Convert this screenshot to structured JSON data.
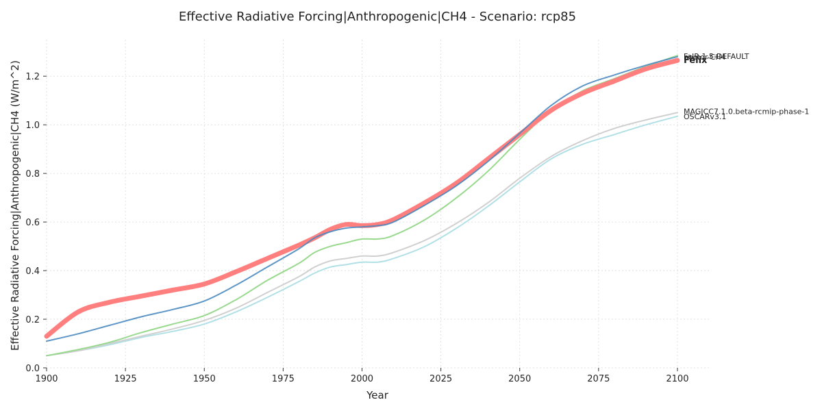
{
  "chart_data": {
    "type": "line",
    "title": "Effective Radiative Forcing|Anthropogenic|CH4 - Scenario: rcp85",
    "xlabel": "Year",
    "ylabel": "Effective Radiative Forcing|Anthropogenic|CH4 (W/m^2)",
    "xlim": [
      1900,
      2110
    ],
    "ylim": [
      0,
      1.35
    ],
    "xticks": [
      1900,
      1925,
      1950,
      1975,
      2000,
      2025,
      2050,
      2075,
      2100
    ],
    "yticks": [
      0.0,
      0.2,
      0.4,
      0.6,
      0.8,
      1.0,
      1.2
    ],
    "grid": true,
    "legend": "labels at line ends (right)",
    "x": [
      1900,
      1910,
      1920,
      1930,
      1940,
      1950,
      1960,
      1970,
      1980,
      1985,
      1990,
      1995,
      2000,
      2005,
      2010,
      2020,
      2030,
      2040,
      2050,
      2060,
      2070,
      2080,
      2090,
      2100
    ],
    "series": [
      {
        "name": "Felix",
        "color": "#ff7f7f",
        "width": 7,
        "bold_label": true,
        "values": [
          0.13,
          0.23,
          0.27,
          0.295,
          0.32,
          0.345,
          0.395,
          0.45,
          0.505,
          0.535,
          0.57,
          0.59,
          0.585,
          0.59,
          0.61,
          0.68,
          0.76,
          0.86,
          0.96,
          1.06,
          1.13,
          1.18,
          1.23,
          1.265
        ]
      },
      {
        "name": "FaIR-1.5-DEFAULT",
        "color": "#4a8ac0",
        "width": 2,
        "values": [
          0.11,
          0.14,
          0.175,
          0.21,
          0.24,
          0.275,
          0.34,
          0.415,
          0.49,
          0.535,
          0.56,
          0.575,
          0.58,
          0.585,
          0.6,
          0.67,
          0.75,
          0.85,
          0.965,
          1.08,
          1.16,
          1.205,
          1.245,
          1.28
        ]
      },
      {
        "name": "hector-CH4",
        "color": "#98d98e",
        "width": 2,
        "values": [
          0.05,
          0.075,
          0.105,
          0.145,
          0.18,
          0.215,
          0.28,
          0.36,
          0.43,
          0.475,
          0.5,
          0.515,
          0.53,
          0.53,
          0.545,
          0.61,
          0.7,
          0.81,
          0.94,
          1.06,
          1.14,
          1.19,
          1.24,
          1.285
        ]
      },
      {
        "name": "MAGICC7.1.0.beta-rcmip-phase-1",
        "color": "#d0d0d0",
        "width": 2,
        "values": [
          0.05,
          0.07,
          0.1,
          0.13,
          0.16,
          0.195,
          0.245,
          0.31,
          0.375,
          0.415,
          0.44,
          0.45,
          0.46,
          0.46,
          0.475,
          0.525,
          0.595,
          0.68,
          0.78,
          0.87,
          0.935,
          0.985,
          1.02,
          1.05
        ]
      },
      {
        "name": "OSCARv3.1",
        "color": "#b0e0e6",
        "width": 2,
        "values": [
          0.05,
          0.07,
          0.095,
          0.125,
          0.15,
          0.18,
          0.23,
          0.29,
          0.355,
          0.39,
          0.415,
          0.425,
          0.435,
          0.435,
          0.45,
          0.5,
          0.575,
          0.665,
          0.765,
          0.86,
          0.92,
          0.96,
          1.0,
          1.035
        ]
      }
    ],
    "end_labels": [
      "FaIR-1.5-DEFAULT",
      "hector-CH4",
      "Felix",
      "MAGICC7.1.0.beta-rcmip-phase-1",
      "OSCARv3.1"
    ]
  }
}
